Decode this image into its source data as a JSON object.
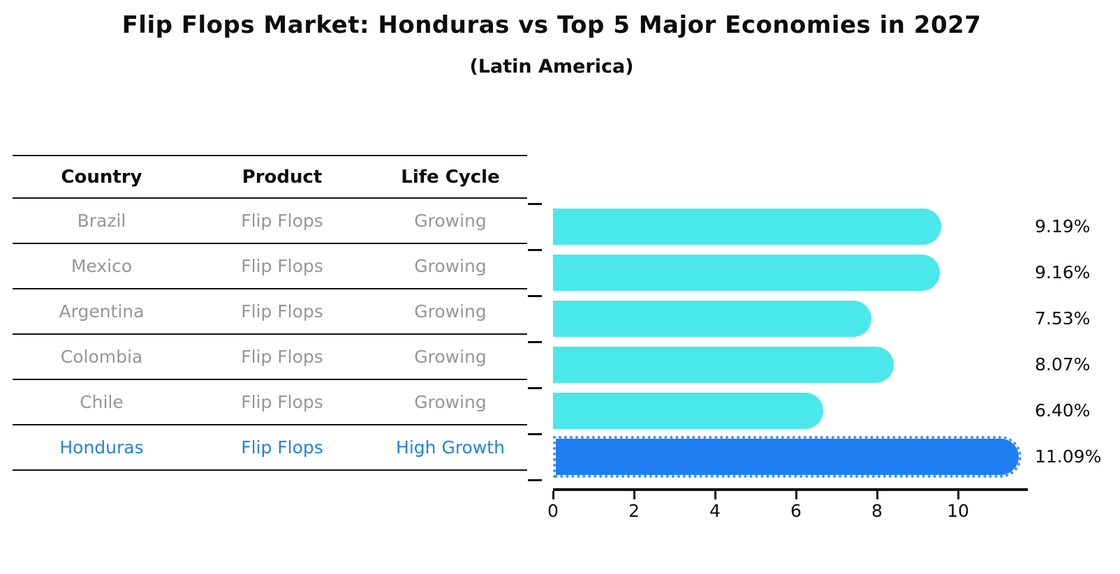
{
  "title": "Flip Flops Market: Honduras vs Top 5 Major Economies in 2027",
  "subtitle": "(Latin America)",
  "colors": {
    "bar": "#4AE8EA",
    "highlight_bar": "#1F7FF0",
    "highlight_bar_dot": "#3E93F4",
    "row_text": "#969696",
    "highlight_text": "#2180F0",
    "axis": "#111111"
  },
  "table": {
    "headers": [
      "Country",
      "Product",
      "Life Cycle"
    ],
    "rows": [
      {
        "country": "Brazil",
        "product": "Flip Flops",
        "life_cycle": "Growing",
        "highlight": false
      },
      {
        "country": "Mexico",
        "product": "Flip Flops",
        "life_cycle": "Growing",
        "highlight": false
      },
      {
        "country": "Argentina",
        "product": "Flip Flops",
        "life_cycle": "Growing",
        "highlight": false
      },
      {
        "country": "Colombia",
        "product": "Flip Flops",
        "life_cycle": "Growing",
        "highlight": false
      },
      {
        "country": "Chile",
        "product": "Flip Flops",
        "life_cycle": "Growing",
        "highlight": false
      },
      {
        "country": "Honduras",
        "product": "Flip Flops",
        "life_cycle": "High Growth",
        "highlight": true
      }
    ]
  },
  "chart_data": {
    "type": "bar",
    "orientation": "horizontal",
    "title": "Flip Flops Market: Honduras vs Top 5 Major Economies in 2027",
    "subtitle": "(Latin America)",
    "categories": [
      "Brazil",
      "Mexico",
      "Argentina",
      "Colombia",
      "Chile",
      "Honduras"
    ],
    "values": [
      9.19,
      9.16,
      7.53,
      8.07,
      6.4,
      11.09
    ],
    "labels": [
      "9.19%",
      "9.16%",
      "7.53%",
      "8.07%",
      "6.40%",
      "11.09%"
    ],
    "highlight_index": 5,
    "x_ticks": [
      0,
      2,
      4,
      6,
      8,
      10
    ],
    "xlim": [
      0,
      11.7
    ],
    "grid": false,
    "legend": false
  }
}
